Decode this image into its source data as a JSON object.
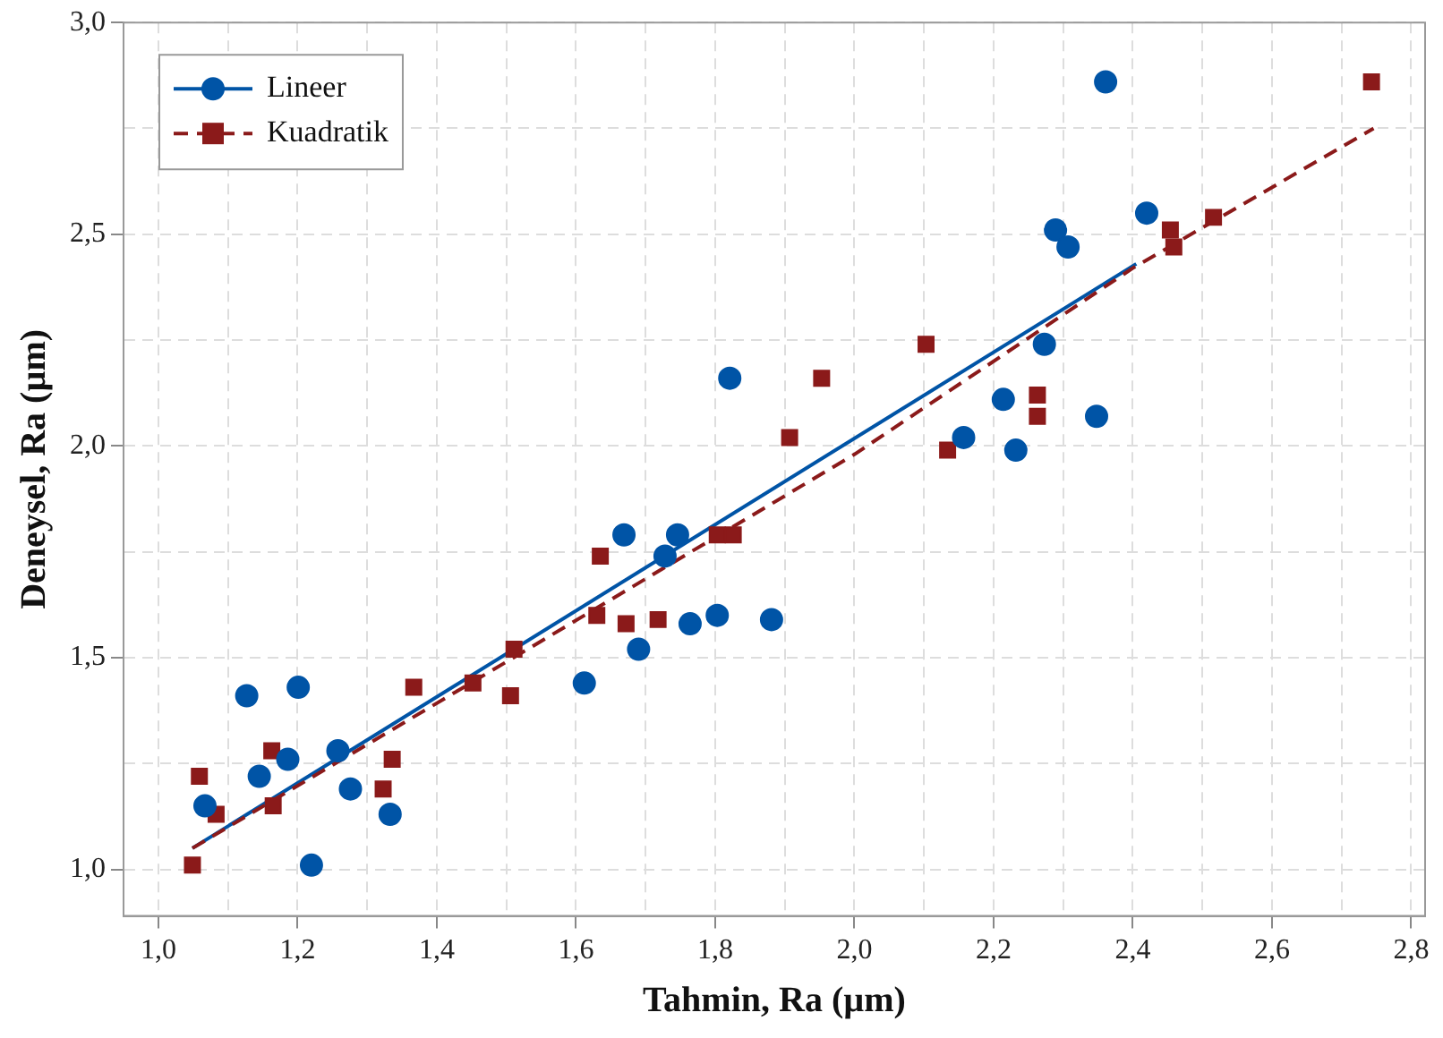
{
  "chart_data": {
    "type": "scatter",
    "xlabel": "Tahmin, Ra (µm)",
    "ylabel": "Deneysel, Ra (µm)",
    "xlim": [
      0.95,
      2.82
    ],
    "ylim": [
      0.89,
      3.0
    ],
    "xticks": [
      {
        "value": 1.0,
        "label": "1,0"
      },
      {
        "value": 1.1,
        "label": null
      },
      {
        "value": 1.2,
        "label": "1,2"
      },
      {
        "value": 1.3,
        "label": null
      },
      {
        "value": 1.4,
        "label": "1,4"
      },
      {
        "value": 1.5,
        "label": null
      },
      {
        "value": 1.6,
        "label": "1,6"
      },
      {
        "value": 1.7,
        "label": null
      },
      {
        "value": 1.8,
        "label": "1,8"
      },
      {
        "value": 1.9,
        "label": null
      },
      {
        "value": 2.0,
        "label": "2,0"
      },
      {
        "value": 2.1,
        "label": null
      },
      {
        "value": 2.2,
        "label": "2,2"
      },
      {
        "value": 2.3,
        "label": null
      },
      {
        "value": 2.4,
        "label": "2,4"
      },
      {
        "value": 2.5,
        "label": null
      },
      {
        "value": 2.6,
        "label": "2,6"
      },
      {
        "value": 2.7,
        "label": null
      },
      {
        "value": 2.8,
        "label": "2,8"
      }
    ],
    "yticks": [
      {
        "value": 1.0,
        "label": "1,0"
      },
      {
        "value": 1.25,
        "label": null
      },
      {
        "value": 1.5,
        "label": "1,5"
      },
      {
        "value": 1.75,
        "label": null
      },
      {
        "value": 2.0,
        "label": "2,0"
      },
      {
        "value": 2.25,
        "label": null
      },
      {
        "value": 2.5,
        "label": "2,5"
      },
      {
        "value": 2.75,
        "label": null
      },
      {
        "value": 3.0,
        "label": "3,0"
      }
    ],
    "grid": true,
    "legend": "top left",
    "series": [
      {
        "name": "Lineer",
        "marker": "circle",
        "color": "#0054a6",
        "x": [
          1.067,
          1.127,
          1.145,
          1.186,
          1.201,
          1.258,
          1.276,
          1.333,
          1.22,
          1.612,
          1.821,
          1.669,
          1.746,
          1.728,
          1.69,
          1.764,
          1.803,
          1.881,
          2.289,
          2.307,
          2.42,
          2.273,
          2.214,
          2.157,
          2.232,
          2.348,
          2.361
        ],
        "values": [
          1.15,
          1.41,
          1.22,
          1.26,
          1.43,
          1.28,
          1.19,
          1.13,
          1.01,
          1.44,
          2.16,
          1.79,
          1.79,
          1.74,
          1.52,
          1.58,
          1.6,
          1.59,
          2.51,
          2.47,
          2.55,
          2.24,
          2.11,
          2.02,
          1.99,
          2.07,
          2.86
        ]
      },
      {
        "name": "Kuadratik",
        "marker": "square",
        "color": "#8b1a1a",
        "x": [
          1.049,
          1.059,
          1.083,
          1.163,
          1.165,
          1.367,
          1.336,
          1.323,
          1.452,
          1.511,
          1.506,
          1.635,
          1.63,
          1.672,
          1.718,
          1.803,
          1.826,
          1.907,
          1.953,
          2.103,
          2.134,
          2.263,
          2.263,
          2.454,
          2.459,
          2.516,
          2.743
        ],
        "values": [
          1.01,
          1.22,
          1.13,
          1.28,
          1.15,
          1.43,
          1.26,
          1.19,
          1.44,
          1.52,
          1.41,
          1.74,
          1.6,
          1.58,
          1.59,
          1.79,
          1.79,
          2.02,
          2.16,
          2.24,
          1.99,
          2.12,
          2.07,
          2.51,
          2.47,
          2.54,
          2.86
        ]
      },
      {
        "type": "line",
        "color": "#8b1a1a",
        "line_style": "dashed",
        "marker": "none",
        "x": [
          1.049,
          1.5,
          2.0,
          2.4,
          2.746
        ],
        "values": [
          1.05,
          1.49,
          1.98,
          2.42,
          2.75
        ]
      },
      {
        "type": "line",
        "color": "#0054a6",
        "line_style": "solid",
        "marker": "none",
        "x": [
          1.049,
          2.405
        ],
        "values": [
          1.05,
          2.43
        ]
      }
    ]
  }
}
